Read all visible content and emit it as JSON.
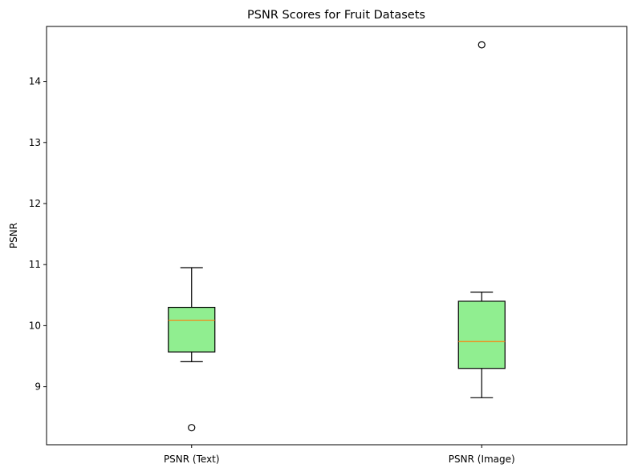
{
  "chart_data": {
    "type": "boxplot",
    "title": "PSNR Scores for Fruit Datasets",
    "xlabel": "",
    "ylabel": "PSNR",
    "ylim": [
      8.05,
      14.9
    ],
    "yticks": [
      9,
      10,
      11,
      12,
      13,
      14
    ],
    "categories": [
      "PSNR (Text)",
      "PSNR (Image)"
    ],
    "boxes": [
      {
        "label": "PSNR (Text)",
        "whisker_low": 9.41,
        "q1": 9.57,
        "median": 10.09,
        "q3": 10.3,
        "whisker_high": 10.95,
        "outliers": [
          8.33
        ]
      },
      {
        "label": "PSNR (Image)",
        "whisker_low": 8.82,
        "q1": 9.3,
        "median": 9.74,
        "q3": 10.4,
        "whisker_high": 10.55,
        "outliers": [
          14.6
        ]
      }
    ],
    "box_color": "#90ee90",
    "median_color": "#ff7f0e",
    "edge_color": "#000000",
    "grid": false,
    "legend": false
  }
}
